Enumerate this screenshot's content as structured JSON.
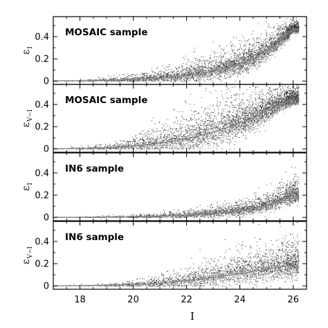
{
  "chart_data": [
    {
      "type": "scatter",
      "label": "MOSAIC sample",
      "ylabel": {
        "main": "ε",
        "sub": "I"
      },
      "xlim": [
        17,
        26.5
      ],
      "ylim": [
        -0.03,
        0.58
      ],
      "yticks": [
        0,
        0.2,
        0.4
      ],
      "ytick_labels": [
        "0",
        "0.2",
        "0.4"
      ],
      "series": [
        {
          "x": [
            17,
            18,
            19,
            20,
            21,
            22,
            23,
            24,
            24.5,
            25,
            25.5,
            26
          ],
          "y_median": [
            0.002,
            0.004,
            0.008,
            0.015,
            0.03,
            0.05,
            0.085,
            0.15,
            0.2,
            0.27,
            0.36,
            0.47
          ],
          "y_max": [
            0.01,
            0.02,
            0.04,
            0.07,
            0.12,
            0.2,
            0.28,
            0.38,
            0.43,
            0.48,
            0.52,
            0.55
          ]
        }
      ]
    },
    {
      "type": "scatter",
      "label": "MOSAIC sample",
      "ylabel": {
        "main": "ε",
        "sub": "V−I"
      },
      "xlim": [
        17,
        26.5
      ],
      "ylim": [
        -0.03,
        0.58
      ],
      "yticks": [
        0,
        0.2,
        0.4
      ],
      "ytick_labels": [
        "0",
        "0.2",
        "0.4"
      ],
      "series": [
        {
          "x": [
            17,
            18,
            19,
            20,
            21,
            22,
            23,
            24,
            24.5,
            25,
            25.5,
            26
          ],
          "y_median": [
            0.002,
            0.005,
            0.01,
            0.025,
            0.05,
            0.09,
            0.15,
            0.23,
            0.28,
            0.34,
            0.4,
            0.45
          ],
          "y_max": [
            0.01,
            0.03,
            0.06,
            0.12,
            0.25,
            0.4,
            0.5,
            0.55,
            0.56,
            0.57,
            0.57,
            0.57
          ]
        }
      ]
    },
    {
      "type": "scatter",
      "label": "IN6 sample",
      "ylabel": {
        "main": "ε",
        "sub": "I"
      },
      "xlim": [
        17,
        26.5
      ],
      "ylim": [
        -0.03,
        0.58
      ],
      "yticks": [
        0,
        0.2,
        0.4
      ],
      "ytick_labels": [
        "0",
        "0.2",
        "0.4"
      ],
      "series": [
        {
          "x": [
            17,
            18,
            19,
            20,
            21,
            22,
            23,
            24,
            24.5,
            25,
            25.5,
            26
          ],
          "y_median": [
            0.001,
            0.002,
            0.004,
            0.007,
            0.012,
            0.02,
            0.035,
            0.06,
            0.08,
            0.11,
            0.15,
            0.2
          ],
          "y_max": [
            0.005,
            0.01,
            0.02,
            0.03,
            0.05,
            0.08,
            0.12,
            0.17,
            0.2,
            0.25,
            0.32,
            0.4
          ]
        }
      ]
    },
    {
      "type": "scatter",
      "label": "IN6 sample",
      "ylabel": {
        "main": "ε",
        "sub": "V−I"
      },
      "xlim": [
        17,
        26.5
      ],
      "ylim": [
        -0.03,
        0.58
      ],
      "yticks": [
        0,
        0.2,
        0.4
      ],
      "ytick_labels": [
        "0",
        "0.2",
        "0.4"
      ],
      "series": [
        {
          "x": [
            17,
            18,
            19,
            20,
            21,
            22,
            23,
            24,
            24.5,
            25,
            25.5,
            26
          ],
          "y_median": [
            0.001,
            0.003,
            0.006,
            0.012,
            0.025,
            0.045,
            0.075,
            0.11,
            0.13,
            0.15,
            0.17,
            0.19
          ],
          "y_max": [
            0.005,
            0.015,
            0.03,
            0.06,
            0.12,
            0.2,
            0.28,
            0.35,
            0.4,
            0.42,
            0.45,
            0.48
          ]
        }
      ]
    }
  ],
  "xaxis": {
    "label": "I",
    "ticks": [
      18,
      20,
      22,
      24,
      26
    ],
    "tick_labels": [
      "18",
      "20",
      "22",
      "24",
      "26"
    ]
  }
}
